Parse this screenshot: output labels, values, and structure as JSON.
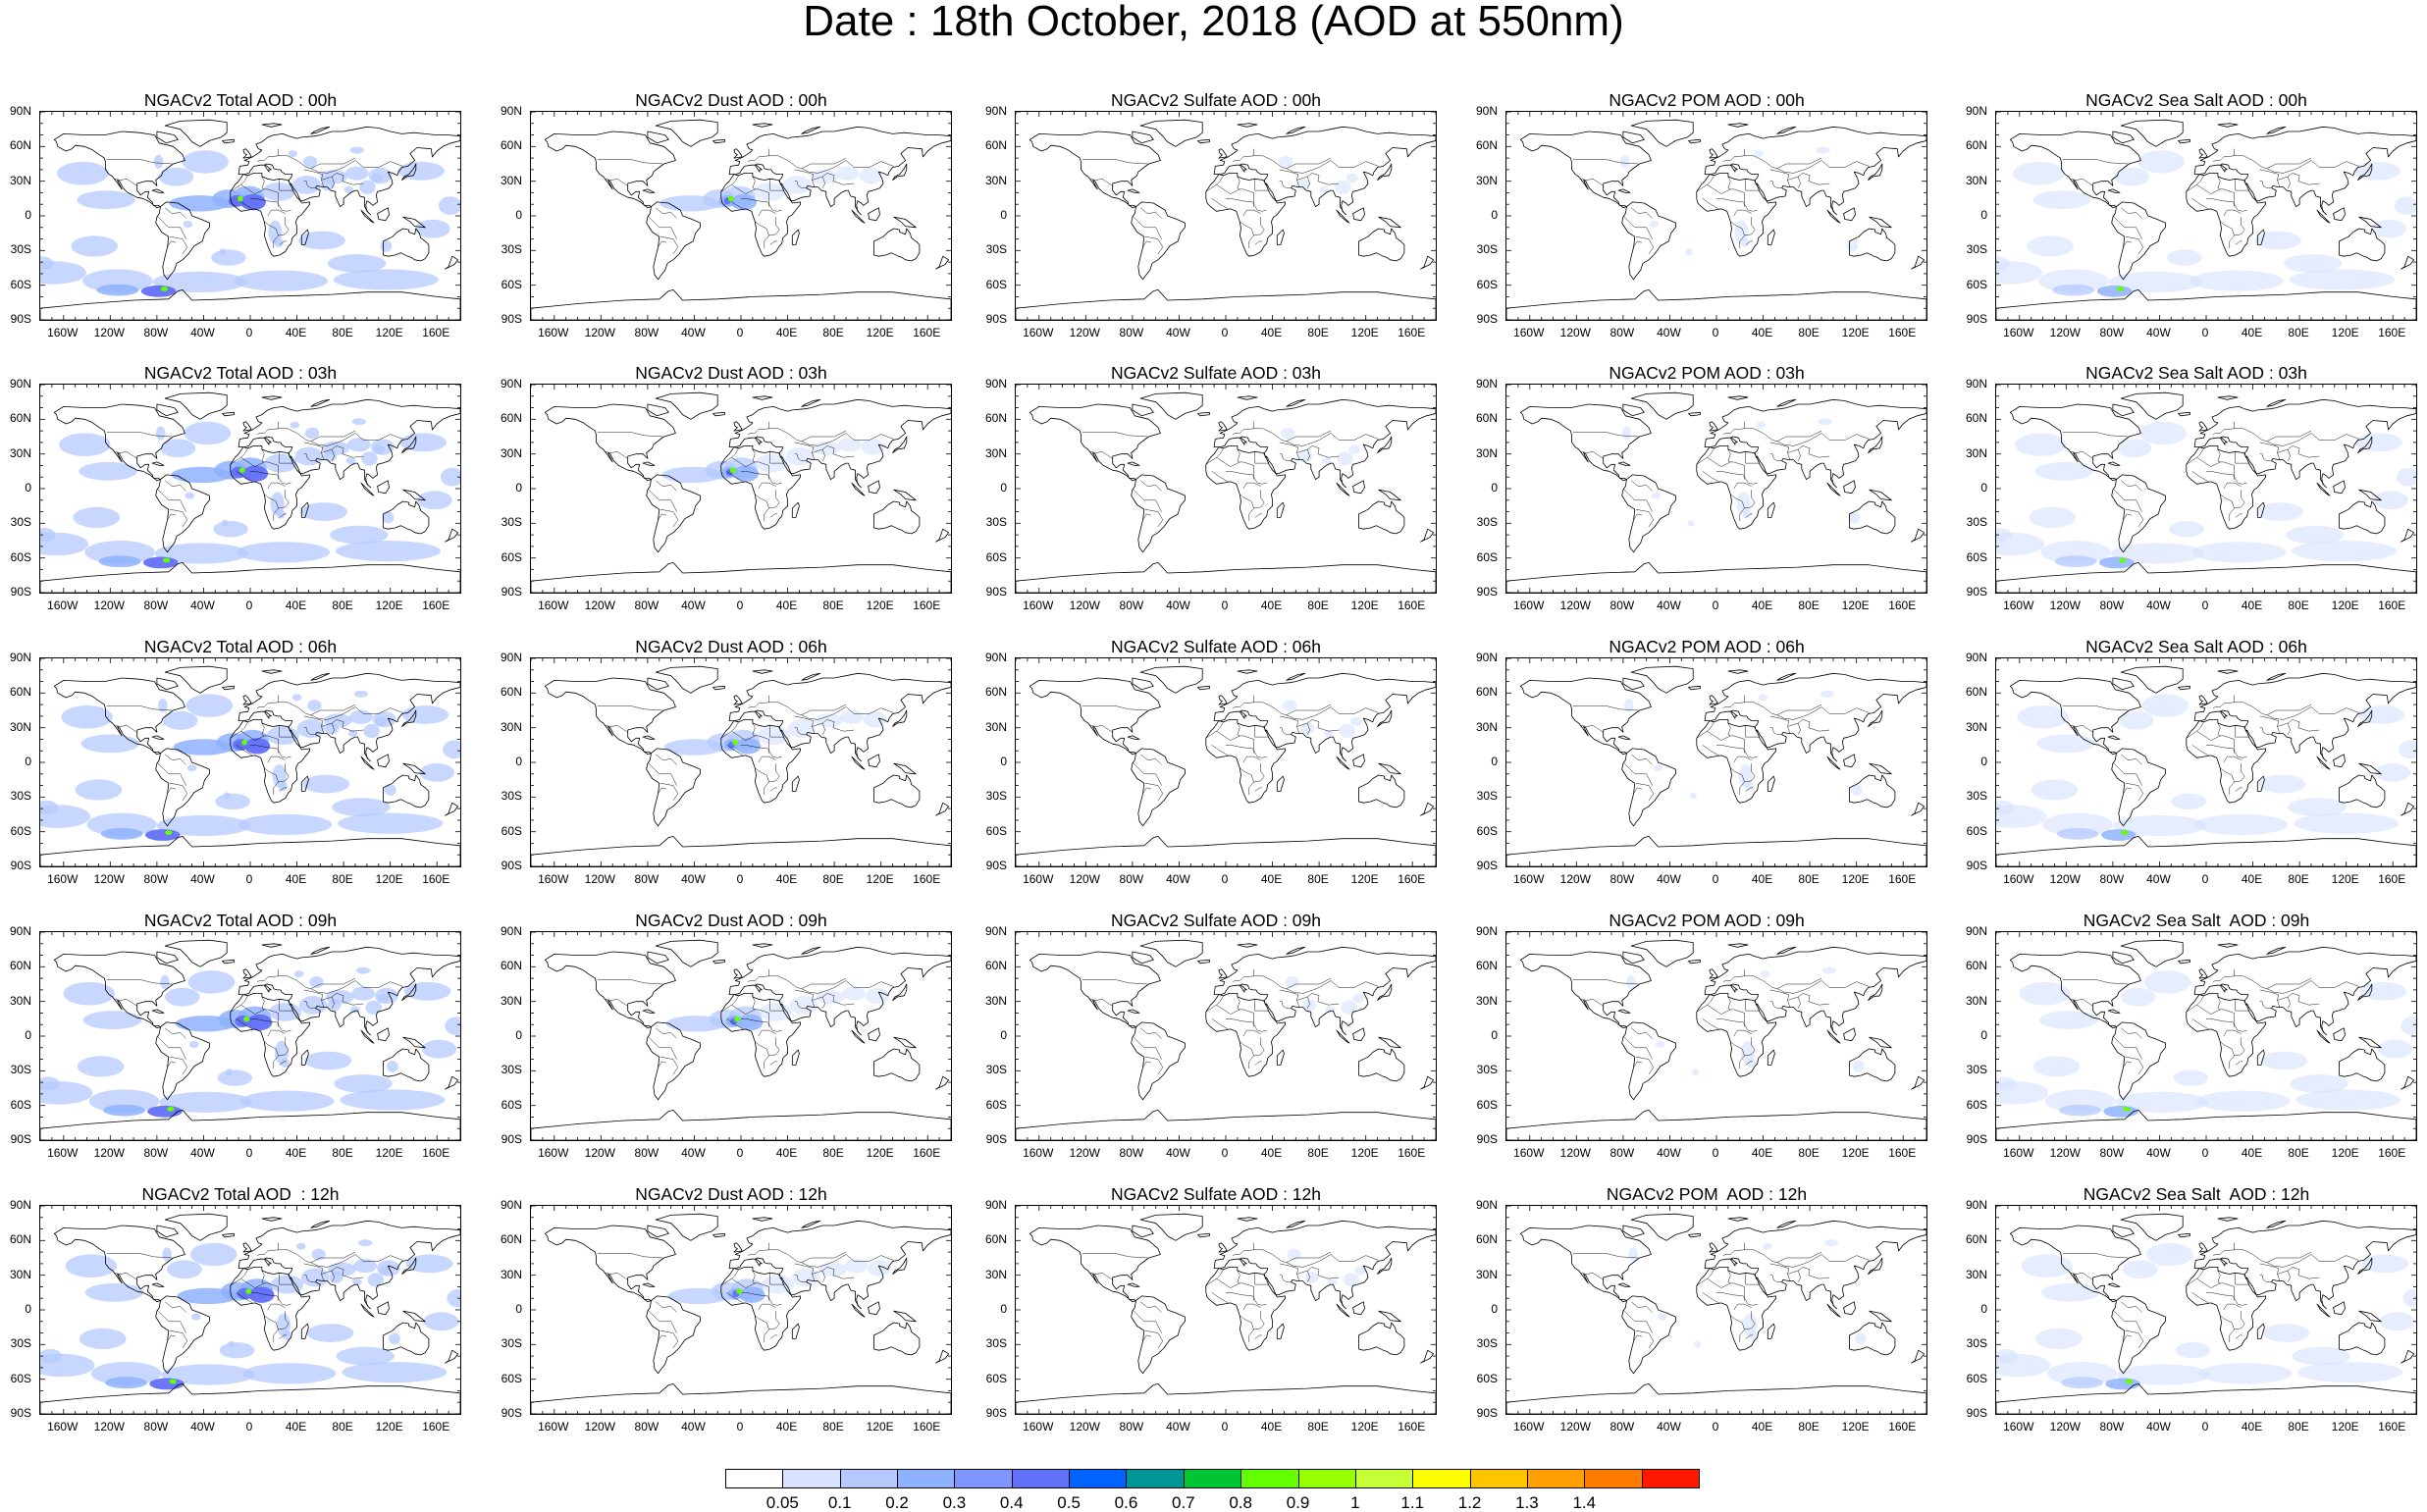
{
  "title": "Date : 18th October, 2018 (AOD at 550nm)",
  "panel_titles": [
    [
      "NGACv2 Total AOD : 00h",
      "NGACv2 Dust AOD : 00h",
      "NGACv2 Sulfate AOD : 00h",
      "NGACv2 POM AOD : 00h",
      "NGACv2 Sea Salt AOD : 00h"
    ],
    [
      "NGACv2 Total AOD : 03h",
      "NGACv2 Dust AOD : 03h",
      "NGACv2 Sulfate AOD : 03h",
      "NGACv2 POM AOD : 03h",
      "NGACv2 Sea Salt AOD : 03h"
    ],
    [
      "NGACv2 Total AOD : 06h",
      "NGACv2 Dust AOD : 06h",
      "NGACv2 Sulfate AOD : 06h",
      "NGACv2 POM AOD : 06h",
      "NGACv2 Sea Salt AOD : 06h"
    ],
    [
      "NGACv2 Total AOD : 09h",
      "NGACv2 Dust AOD : 09h",
      "NGACv2 Sulfate AOD : 09h",
      "NGACv2 POM AOD : 09h",
      "NGACv2 Sea Salt  AOD : 09h"
    ],
    [
      "NGACv2 Total AOD  : 12h",
      "NGACv2 Dust AOD : 12h",
      "NGACv2 Sulfate AOD : 12h",
      "NGACv2 POM  AOD : 12h",
      "NGACv2 Sea Salt  AOD : 12h"
    ]
  ],
  "lat_labels": [
    "90N",
    "60N",
    "30N",
    "0",
    "30S",
    "60S",
    "90S"
  ],
  "lon_labels": [
    "160W",
    "120W",
    "80W",
    "40W",
    "0",
    "40E",
    "80E",
    "120E",
    "160E"
  ],
  "colorbar": {
    "labels": [
      "0.05",
      "0.1",
      "0.2",
      "0.3",
      "0.4",
      "0.5",
      "0.6",
      "0.7",
      "0.8",
      "0.9",
      "1",
      "1.1",
      "1.2",
      "1.3",
      "1.4"
    ],
    "colors": [
      "#ffffff",
      "#d6e2ff",
      "#b5c9ff",
      "#8eb2ff",
      "#7f96ff",
      "#6370f8",
      "#0063ff",
      "#009696",
      "#00c633",
      "#63ff00",
      "#96ff00",
      "#c6ff33",
      "#ffff00",
      "#ffc600",
      "#ffa000",
      "#ff7c00",
      "#ff1900"
    ]
  },
  "colors": {
    "light_aerosol": "#d6e2ff",
    "medium_aerosol": "#b5c9ff",
    "dense_aerosol": "#8eb2ff",
    "heavy_aerosol": "#6370f8",
    "peak_aerosol": "#63ff00",
    "coastline": "#000000"
  },
  "aerosol_types": [
    "total",
    "dust",
    "sulfate",
    "pom",
    "seasalt"
  ]
}
